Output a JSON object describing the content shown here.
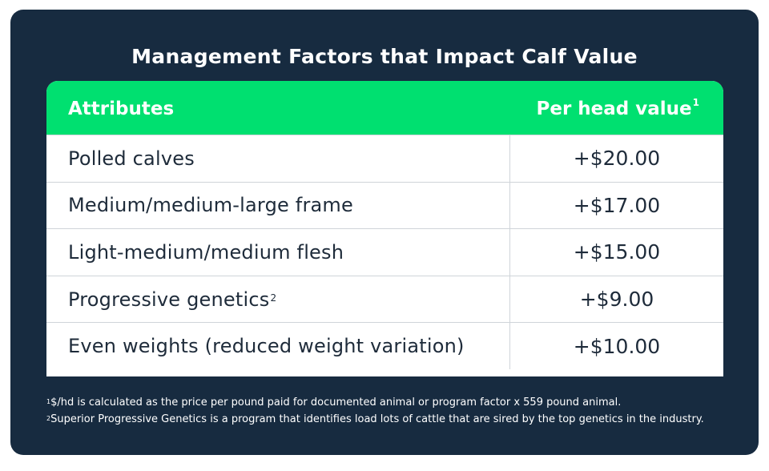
{
  "title": "Management Factors that Impact Calf Value",
  "table": {
    "headers": {
      "attributes": "Attributes",
      "value": "Per head value",
      "value_footnote": "1"
    },
    "rows": [
      {
        "attribute": "Polled calves",
        "footnote": "",
        "value": "+$20.00"
      },
      {
        "attribute": "Medium/medium-large frame",
        "footnote": "",
        "value": "+$17.00"
      },
      {
        "attribute": "Light-medium/medium flesh",
        "footnote": "",
        "value": "+$15.00"
      },
      {
        "attribute": "Progressive genetics",
        "footnote": "2",
        "value": "+$9.00"
      },
      {
        "attribute": "Even weights (reduced weight variation)",
        "footnote": "",
        "value": "+$10.00"
      }
    ]
  },
  "footnotes": [
    {
      "marker": "1",
      "text": "$/hd is calculated as the price per pound paid for documented animal or program factor x 559 pound animal."
    },
    {
      "marker": "2",
      "text": "Superior Progressive Genetics is a program that identifies load lots of cattle that are sired by the top genetics in the industry."
    }
  ],
  "colors": {
    "background": "#172b40",
    "header": "#00e070",
    "text": "#1e2b3a"
  }
}
